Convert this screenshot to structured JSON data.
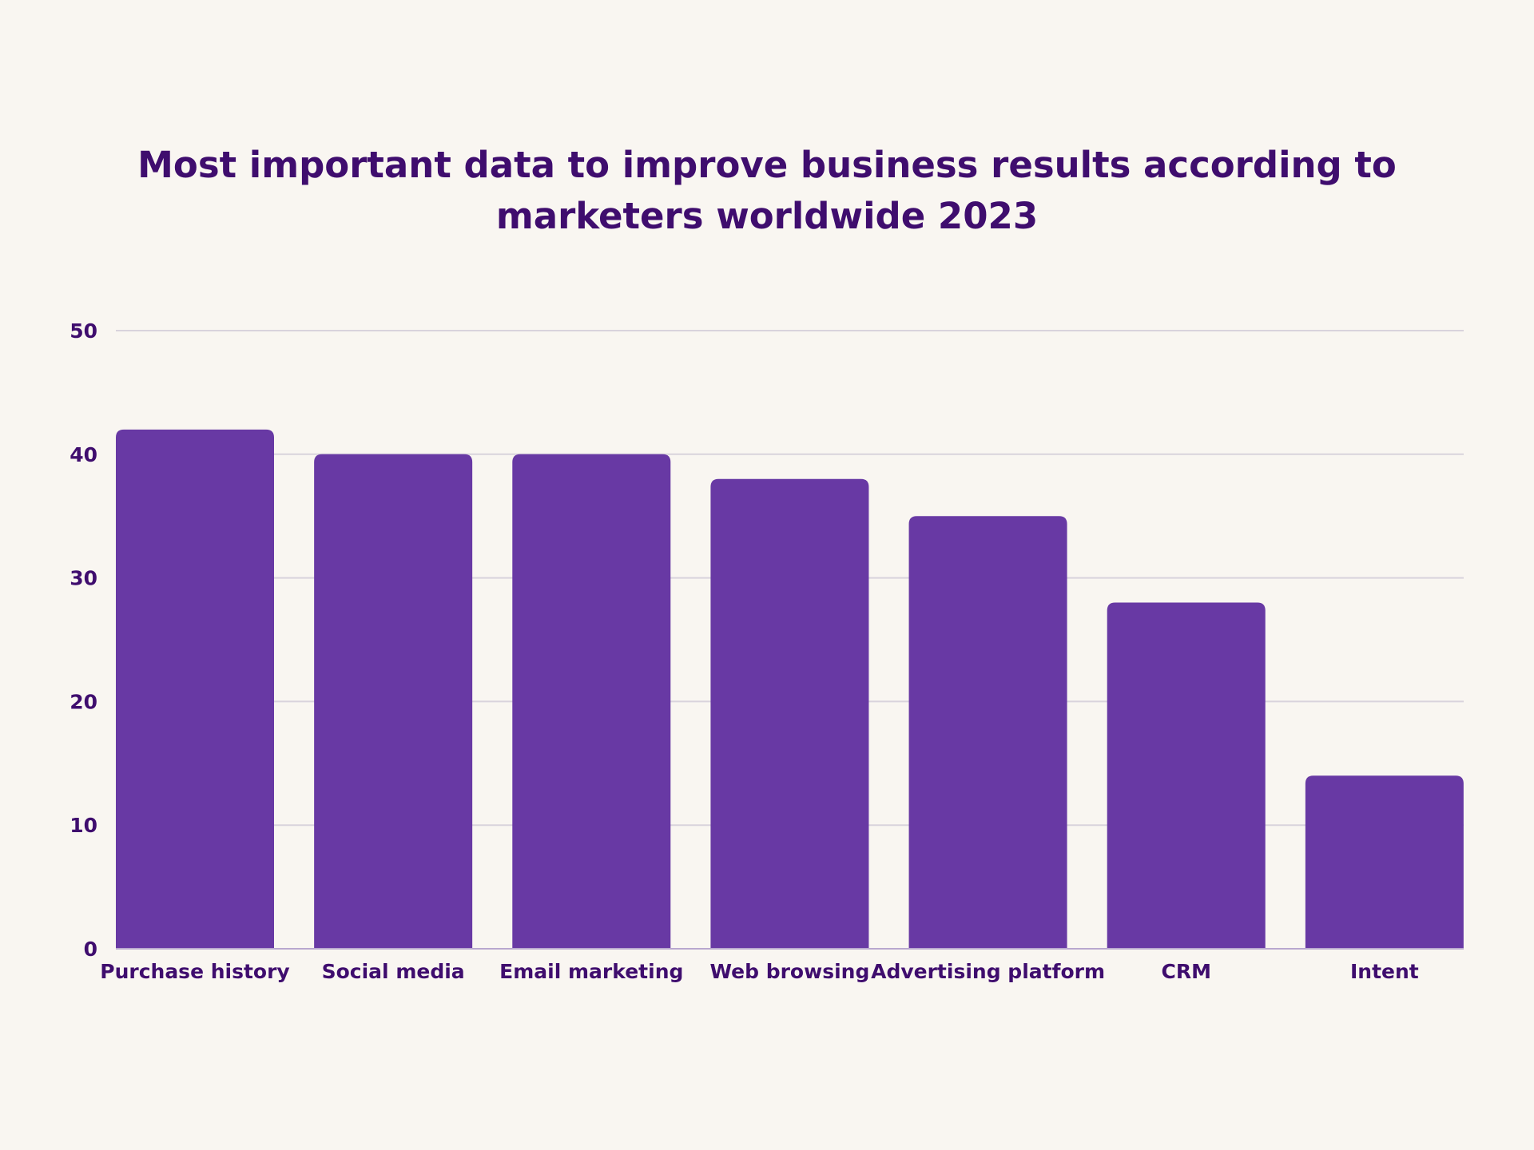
{
  "chart_data": {
    "type": "bar",
    "title": "Most important data to improve business results according to marketers worldwide 2023",
    "categories": [
      "Purchase history",
      "Social media",
      "Email marketing",
      "Web browsing",
      "Advertising platform",
      "CRM",
      "Intent"
    ],
    "values": [
      42,
      40,
      40,
      38,
      35,
      28,
      14
    ],
    "ylim": [
      0,
      50
    ],
    "yticks": [
      "0",
      "10",
      "20",
      "30",
      "40",
      "50"
    ],
    "grid": true,
    "legend": "none",
    "colors": {
      "bar": "#6839a4",
      "text": "#3f0d6e",
      "grid": "#d9d3dc",
      "axis": "#b9a8cf",
      "background": "#f9f6f1"
    }
  }
}
